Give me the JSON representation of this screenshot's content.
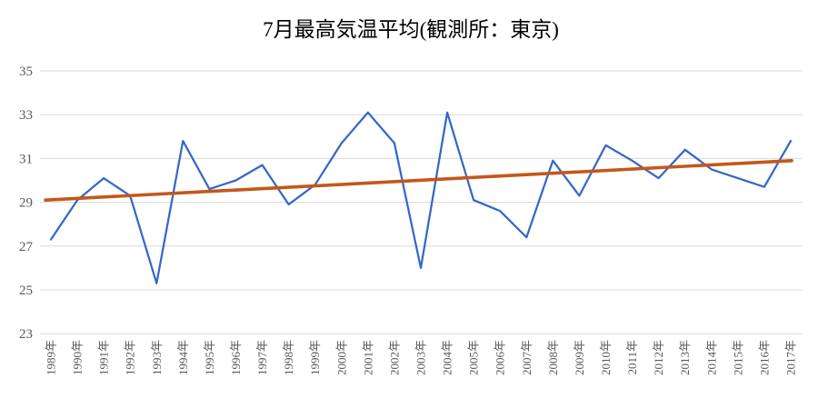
{
  "chart_data": {
    "type": "line",
    "title": "7月最高気温平均(観測所：東京)",
    "categories": [
      "1989年",
      "1990年",
      "1991年",
      "1992年",
      "1993年",
      "1994年",
      "1995年",
      "1996年",
      "1997年",
      "1998年",
      "1999年",
      "2000年",
      "2001年",
      "2002年",
      "2003年",
      "2004年",
      "2005年",
      "2006年",
      "2007年",
      "2008年",
      "2009年",
      "2010年",
      "2011年",
      "2012年",
      "2013年",
      "2014年",
      "2015年",
      "2016年",
      "2017年"
    ],
    "series": [
      {
        "values": [
          27.3,
          29.1,
          30.1,
          29.3,
          25.3,
          31.8,
          29.6,
          30.0,
          30.7,
          28.9,
          29.8,
          31.7,
          33.1,
          31.7,
          26.0,
          33.1,
          29.1,
          28.6,
          27.4,
          30.9,
          29.3,
          31.6,
          30.9,
          30.1,
          31.4,
          30.5,
          30.1,
          29.7,
          31.8
        ]
      }
    ],
    "trendline": {
      "start_value": 29.1,
      "end_value": 30.9
    },
    "yticks": [
      35,
      33,
      31,
      29,
      27,
      25,
      23
    ],
    "ylim": [
      23,
      35
    ],
    "xlabel": "",
    "ylabel": "",
    "grid": "horizontal",
    "legend": "none",
    "colors": {
      "series_line": "#3568C6",
      "trendline": "#C4571B",
      "gridline": "#D9D9D9",
      "title_text": "#404040",
      "axis_text": "#595959",
      "background": "#FFFFFF"
    }
  }
}
